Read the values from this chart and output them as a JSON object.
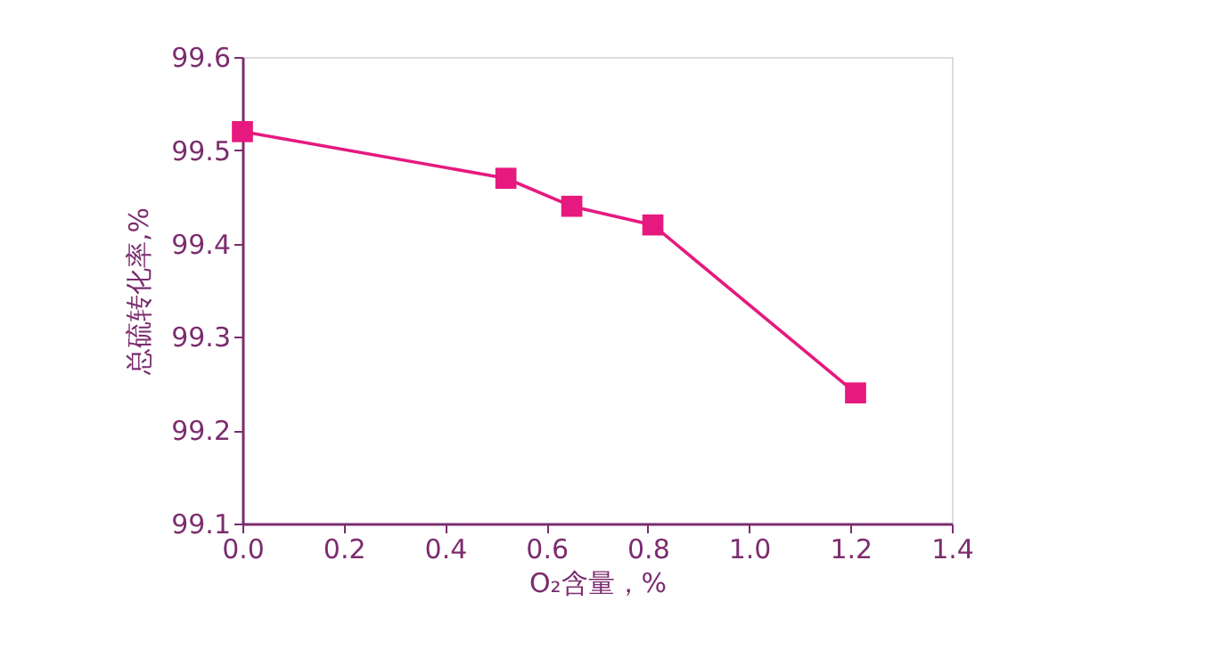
{
  "chart_data": {
    "type": "line",
    "xlabel": "O₂含量，%",
    "ylabel": "总硫转化率,%",
    "series": [
      {
        "color": "#e6197f",
        "x": [
          0.0,
          0.52,
          0.65,
          0.81,
          1.21
        ],
        "values": [
          99.52,
          99.47,
          99.44,
          99.42,
          99.24
        ]
      }
    ],
    "xlim": [
      0.0,
      1.4
    ],
    "xticks": [
      {
        "value": 0,
        "label": "0.0"
      },
      0.2,
      0.4,
      0.6,
      0.8,
      {
        "value": 1,
        "label": "1.0"
      },
      1.2,
      1.4
    ],
    "ylim": [
      99.1,
      99.6
    ],
    "yticks": [
      99.1,
      99.2,
      99.3,
      99.4,
      99.5,
      99.6
    ],
    "grid": false,
    "marker": "square",
    "line_style": "solid"
  }
}
